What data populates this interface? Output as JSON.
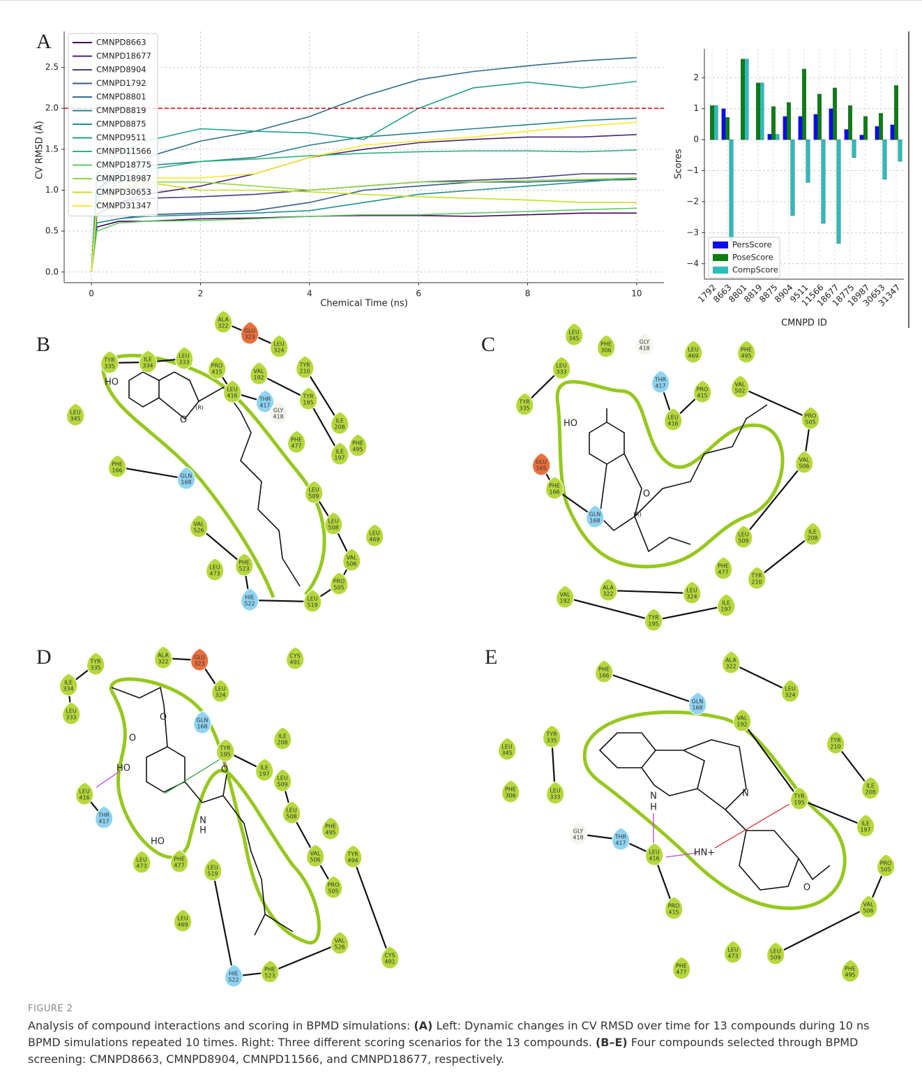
{
  "chart_data": [
    {
      "type": "line",
      "xlabel": "Chemical Time (ns)",
      "ylabel": "CV RMSD (Å)",
      "x": [
        0,
        0.1,
        0.5,
        1,
        2,
        3,
        4,
        5,
        6,
        7,
        8,
        9,
        10
      ],
      "xlim": [
        -0.5,
        10.5
      ],
      "ylim": [
        -0.13,
        2.94
      ],
      "xticks": [
        0,
        2,
        4,
        6,
        8,
        10
      ],
      "yticks": [
        {
          "value": 0,
          "label": "0.0"
        },
        {
          "value": 0.5,
          "label": "0.5"
        },
        {
          "value": 1,
          "label": "1.0"
        },
        {
          "value": 1.5,
          "label": "1.5"
        },
        {
          "value": 2,
          "label": "2.0"
        },
        {
          "value": 2.5,
          "label": "2.5"
        }
      ],
      "threshold": 2,
      "threshold_color": "#e8141c",
      "grid": true,
      "legend": "upper left",
      "series": [
        {
          "name": "CMNPD8663",
          "color": "#440154",
          "values": [
            0,
            0.55,
            0.62,
            0.62,
            0.65,
            0.66,
            0.68,
            0.69,
            0.69,
            0.68,
            0.7,
            0.72,
            0.72
          ]
        },
        {
          "name": "CMNPD18677",
          "color": "#482173",
          "values": [
            0,
            0.7,
            0.85,
            0.95,
            1.05,
            1.2,
            1.4,
            1.5,
            1.58,
            1.62,
            1.65,
            1.65,
            1.68
          ]
        },
        {
          "name": "CMNPD8904",
          "color": "#433e85",
          "values": [
            0,
            0.7,
            0.85,
            0.9,
            0.92,
            0.95,
            1.0,
            1.05,
            1.1,
            1.12,
            1.15,
            1.2,
            1.2
          ]
        },
        {
          "name": "CMNPD1792",
          "color": "#38598c",
          "values": [
            0,
            0.6,
            0.65,
            0.7,
            0.72,
            0.75,
            0.85,
            1.0,
            1.05,
            1.1,
            1.1,
            1.12,
            1.13
          ]
        },
        {
          "name": "CMNPD8801",
          "color": "#2d6b8e",
          "values": [
            0,
            1.0,
            1.25,
            1.4,
            1.6,
            1.72,
            1.9,
            2.15,
            2.35,
            2.45,
            2.52,
            2.58,
            2.62
          ]
        },
        {
          "name": "CMNPD8819",
          "color": "#27808e",
          "values": [
            0,
            1.0,
            1.2,
            1.3,
            1.35,
            1.4,
            1.55,
            1.65,
            1.7,
            1.75,
            1.8,
            1.85,
            1.88
          ]
        },
        {
          "name": "CMNPD8875",
          "color": "#21918c",
          "values": [
            0,
            0.6,
            0.65,
            0.68,
            0.7,
            0.72,
            0.75,
            0.85,
            0.95,
            1.0,
            1.05,
            1.1,
            1.15
          ]
        },
        {
          "name": "CMNPD9511",
          "color": "#1fa187",
          "values": [
            0,
            1.2,
            1.45,
            1.6,
            1.75,
            1.72,
            1.7,
            1.62,
            2.0,
            2.25,
            2.32,
            2.25,
            2.33
          ]
        },
        {
          "name": "CMNPD11566",
          "color": "#2db27d",
          "values": [
            0,
            0.9,
            1.1,
            1.25,
            1.35,
            1.38,
            1.42,
            1.45,
            1.47,
            1.48,
            1.48,
            1.47,
            1.49
          ]
        },
        {
          "name": "CMNPD18775",
          "color": "#5ec962",
          "values": [
            0,
            0.5,
            0.6,
            0.62,
            0.63,
            0.65,
            0.68,
            0.7,
            0.7,
            0.72,
            0.74,
            0.76,
            0.78
          ]
        },
        {
          "name": "CMNPD18987",
          "color": "#8fd744",
          "values": [
            0,
            0.8,
            1.0,
            1.1,
            1.1,
            1.05,
            1.0,
            1.05,
            1.1,
            1.1,
            1.12,
            1.13,
            1.15
          ]
        },
        {
          "name": "CMNPD30653",
          "color": "#c8e020",
          "values": [
            0,
            0.8,
            1.0,
            1.1,
            1.0,
            1.0,
            0.98,
            0.95,
            0.92,
            0.9,
            0.88,
            0.85,
            0.85
          ]
        },
        {
          "name": "CMNPD31347",
          "color": "#fde725",
          "values": [
            0,
            0.8,
            1.0,
            1.15,
            1.15,
            1.2,
            1.4,
            1.55,
            1.6,
            1.65,
            1.72,
            1.78,
            1.83
          ]
        }
      ]
    },
    {
      "type": "bar",
      "xlabel": "CMNPD ID",
      "ylabel": "Scores",
      "categories": [
        "1792",
        "8663",
        "8801",
        "8819",
        "8875",
        "8904",
        "9511",
        "11566",
        "18677",
        "18775",
        "18987",
        "30653",
        "31347"
      ],
      "ylim": [
        -4.5,
        2.93
      ],
      "yticks": [
        {
          "value": -4,
          "label": "−4"
        },
        {
          "value": -3,
          "label": "−3"
        },
        {
          "value": -2,
          "label": "−2"
        },
        {
          "value": -1,
          "label": "−1"
        },
        0,
        1,
        2
      ],
      "grid": true,
      "legend": "lower left",
      "series": [
        {
          "name": "PersScore",
          "color": "#0a0af5",
          "values": [
            0,
            1.0,
            0,
            0,
            0.18,
            0.75,
            0.75,
            0.82,
            1.0,
            0.33,
            0.15,
            0.43,
            0.48
          ]
        },
        {
          "name": "PoseScore",
          "color": "#0b7f14",
          "values": [
            1.1,
            0.72,
            2.6,
            1.83,
            1.07,
            1.2,
            2.28,
            1.47,
            1.67,
            1.1,
            0.75,
            0.85,
            1.75
          ]
        },
        {
          "name": "CompScore",
          "color": "#2cbcbc",
          "values": [
            1.1,
            -3.3,
            2.6,
            1.83,
            0.17,
            -2.45,
            -1.38,
            -2.7,
            -3.35,
            -0.58,
            0,
            -1.28,
            -0.7
          ]
        }
      ]
    }
  ],
  "panel_labels": [
    "A",
    "B",
    "C",
    "D",
    "E"
  ],
  "diagrams": [
    {
      "residues": [
        {
          "name": "ALA",
          "number": "322"
        },
        {
          "name": "GLU",
          "number": "323"
        },
        {
          "name": "LEU",
          "number": "324"
        },
        {
          "name": "TYR",
          "number": "335"
        },
        {
          "name": "ILE",
          "number": "334"
        },
        {
          "name": "LEU",
          "number": "333"
        },
        {
          "name": "PRO",
          "number": "415"
        },
        {
          "name": "VAL",
          "number": "192"
        },
        {
          "name": "TYR",
          "number": "210"
        },
        {
          "name": "LEU",
          "number": "416"
        },
        {
          "name": "THR",
          "number": "417"
        },
        {
          "name": "GLY",
          "number": "418"
        },
        {
          "name": "TYR",
          "number": "195"
        },
        {
          "name": "ILE",
          "number": "208"
        },
        {
          "name": "PHE",
          "number": "495"
        },
        {
          "name": "LEU",
          "number": "345"
        },
        {
          "name": "PHE",
          "number": "477"
        },
        {
          "name": "ILE",
          "number": "197"
        },
        {
          "name": "PHE",
          "number": "166"
        },
        {
          "name": "GLN",
          "number": "168"
        },
        {
          "name": "LEU",
          "number": "509"
        },
        {
          "name": "LEU",
          "number": "508"
        },
        {
          "name": "VAL",
          "number": "526"
        },
        {
          "name": "LEU",
          "number": "469"
        },
        {
          "name": "VAL",
          "number": "506"
        },
        {
          "name": "LEU",
          "number": "473"
        },
        {
          "name": "PHE",
          "number": "523"
        },
        {
          "name": "PRO",
          "number": "505"
        },
        {
          "name": "HIE",
          "number": "522"
        },
        {
          "name": "LEU",
          "number": "519"
        }
      ],
      "atoms": [
        "HO",
        "O",
        "(R)"
      ]
    },
    {
      "residues": [
        {
          "name": "LEU",
          "number": "345"
        },
        {
          "name": "PHE",
          "number": "306"
        },
        {
          "name": "GLY",
          "number": "418"
        },
        {
          "name": "LEU",
          "number": "469"
        },
        {
          "name": "PHE",
          "number": "495"
        },
        {
          "name": "LEU",
          "number": "333"
        },
        {
          "name": "THR",
          "number": "417"
        },
        {
          "name": "PRO",
          "number": "415"
        },
        {
          "name": "VAL",
          "number": "502"
        },
        {
          "name": "TYR",
          "number": "335"
        },
        {
          "name": "LEU",
          "number": "416"
        },
        {
          "name": "PRO",
          "number": "505"
        },
        {
          "name": "VAL",
          "number": "506"
        },
        {
          "name": "GLU",
          "number": "165"
        },
        {
          "name": "PHE",
          "number": "166"
        },
        {
          "name": "LEU",
          "number": "509"
        },
        {
          "name": "ILE",
          "number": "208"
        },
        {
          "name": "GLN",
          "number": "168"
        },
        {
          "name": "PHE",
          "number": "477"
        },
        {
          "name": "TYR",
          "number": "210"
        },
        {
          "name": "VAL",
          "number": "192"
        },
        {
          "name": "ALA",
          "number": "322"
        },
        {
          "name": "LEU",
          "number": "324"
        },
        {
          "name": "ILE",
          "number": "197"
        },
        {
          "name": "TYR",
          "number": "195"
        }
      ],
      "atoms": [
        "HO",
        "O",
        "(R)"
      ]
    },
    {
      "residues": [
        {
          "name": "TYR",
          "number": "335"
        },
        {
          "name": "ALA",
          "number": "322"
        },
        {
          "name": "GLU",
          "number": "323"
        },
        {
          "name": "CYS",
          "number": "491"
        },
        {
          "name": "ILE",
          "number": "334"
        },
        {
          "name": "LEU",
          "number": "324"
        },
        {
          "name": "LEU",
          "number": "333"
        },
        {
          "name": "GLN",
          "number": "168"
        },
        {
          "name": "TYR",
          "number": "195"
        },
        {
          "name": "ILE",
          "number": "208"
        },
        {
          "name": "ILE",
          "number": "197"
        },
        {
          "name": "LEU",
          "number": "416"
        },
        {
          "name": "LEU",
          "number": "509"
        },
        {
          "name": "THR",
          "number": "417"
        },
        {
          "name": "LEU",
          "number": "508"
        },
        {
          "name": "PHE",
          "number": "495"
        },
        {
          "name": "VAL",
          "number": "506"
        },
        {
          "name": "TYR",
          "number": "494"
        },
        {
          "name": "LEU",
          "number": "473"
        },
        {
          "name": "PHE",
          "number": "477"
        },
        {
          "name": "LEU",
          "number": "519"
        },
        {
          "name": "PRO",
          "number": "505"
        },
        {
          "name": "LEU",
          "number": "469"
        },
        {
          "name": "VAL",
          "number": "526"
        },
        {
          "name": "HIE",
          "number": "522"
        },
        {
          "name": "PHE",
          "number": "523"
        },
        {
          "name": "CYS",
          "number": "491"
        }
      ],
      "atoms": [
        "O",
        "O",
        "HO",
        "O",
        "N",
        "H",
        "HO"
      ]
    },
    {
      "residues": [
        {
          "name": "PHE",
          "number": "166"
        },
        {
          "name": "ALA",
          "number": "322"
        },
        {
          "name": "LEU",
          "number": "324"
        },
        {
          "name": "GLN",
          "number": "168"
        },
        {
          "name": "VAL",
          "number": "192"
        },
        {
          "name": "TYR",
          "number": "210"
        },
        {
          "name": "TYR",
          "number": "335"
        },
        {
          "name": "LEU",
          "number": "345"
        },
        {
          "name": "PHE",
          "number": "306"
        },
        {
          "name": "LEU",
          "number": "333"
        },
        {
          "name": "ILE",
          "number": "208"
        },
        {
          "name": "TYR",
          "number": "195"
        },
        {
          "name": "ILE",
          "number": "197"
        },
        {
          "name": "GLY",
          "number": "418"
        },
        {
          "name": "THR",
          "number": "417"
        },
        {
          "name": "LEU",
          "number": "416"
        },
        {
          "name": "PRO",
          "number": "505"
        },
        {
          "name": "PRO",
          "number": "415"
        },
        {
          "name": "VAL",
          "number": "506"
        },
        {
          "name": "LEU",
          "number": "473"
        },
        {
          "name": "LEU",
          "number": "509"
        },
        {
          "name": "PHE",
          "number": "477"
        },
        {
          "name": "PHE",
          "number": "495"
        }
      ],
      "atoms": [
        "N",
        "N",
        "H",
        "HN+",
        "O"
      ]
    }
  ],
  "caption": {
    "label": "FIGURE 2",
    "segments": [
      {
        "text": "Analysis of compound interactions and scoring in BPMD simulations: ",
        "bold": false
      },
      {
        "text": "(A)",
        "bold": true
      },
      {
        "text": " Left: Dynamic changes in CV RMSD over time for 13 compounds during 10 ns BPMD simulations repeated 10 times. Right: Three different scoring scenarios for the 13 compounds. ",
        "bold": false
      },
      {
        "text": "(B–E)",
        "bold": true
      },
      {
        "text": " Four compounds selected through BPMD screening: CMNPD8663, CMNPD8904, CMNPD11566, and CMNPD18677, respectively.",
        "bold": false
      }
    ]
  }
}
